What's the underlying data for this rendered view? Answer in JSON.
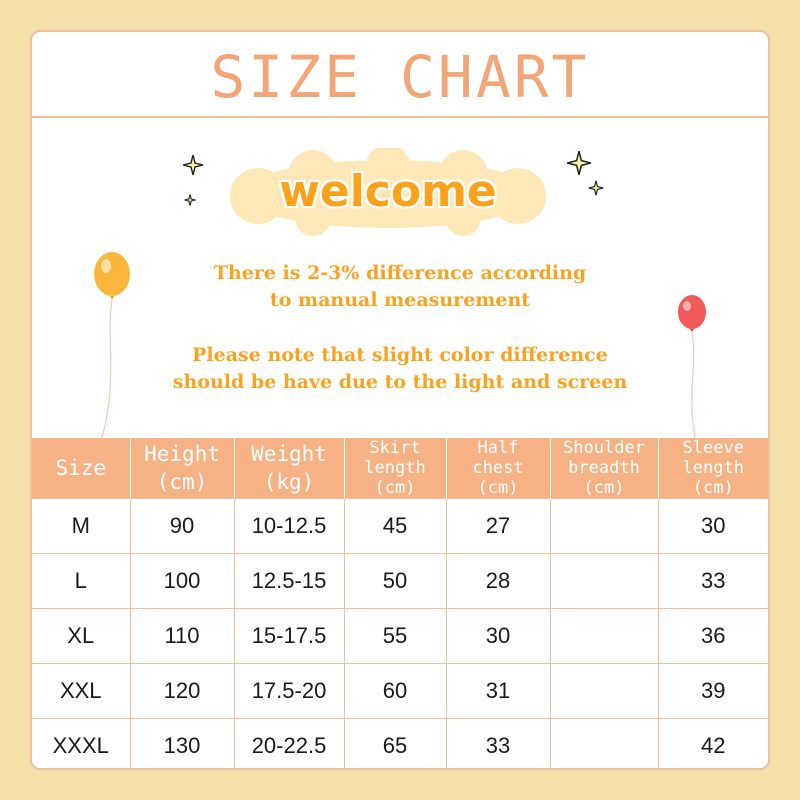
{
  "title": "SIZE CHART",
  "welcome": "welcome",
  "note1": [
    "There is 2-3% difference according",
    "to manual measurement"
  ],
  "note2": [
    "Please note that slight color difference",
    "should be have due to the light and screen"
  ],
  "colors": {
    "background": "#f3dfa8",
    "accent": "#f6b285",
    "title": "#f2a576",
    "note_text": "#f9a21f",
    "cloud": "#ffe8b8"
  },
  "table": {
    "headers": [
      "Size",
      "Height\n(cm)",
      "Weight\n(kg)",
      "Skirt\nlength\n(cm)",
      "Half\nchest\n(cm)",
      "Shoulder\nbreadth\n(cm)",
      "Sleeve\nlength\n(cm)"
    ],
    "rows": [
      [
        "M",
        "90",
        "10-12.5",
        "45",
        "27",
        "",
        "30"
      ],
      [
        "L",
        "100",
        "12.5-15",
        "50",
        "28",
        "",
        "33"
      ],
      [
        "XL",
        "110",
        "15-17.5",
        "55",
        "30",
        "",
        "36"
      ],
      [
        "XXL",
        "120",
        "17.5-20",
        "60",
        "31",
        "",
        "39"
      ],
      [
        "XXXL",
        "130",
        "20-22.5",
        "65",
        "33",
        "",
        "42"
      ]
    ]
  }
}
